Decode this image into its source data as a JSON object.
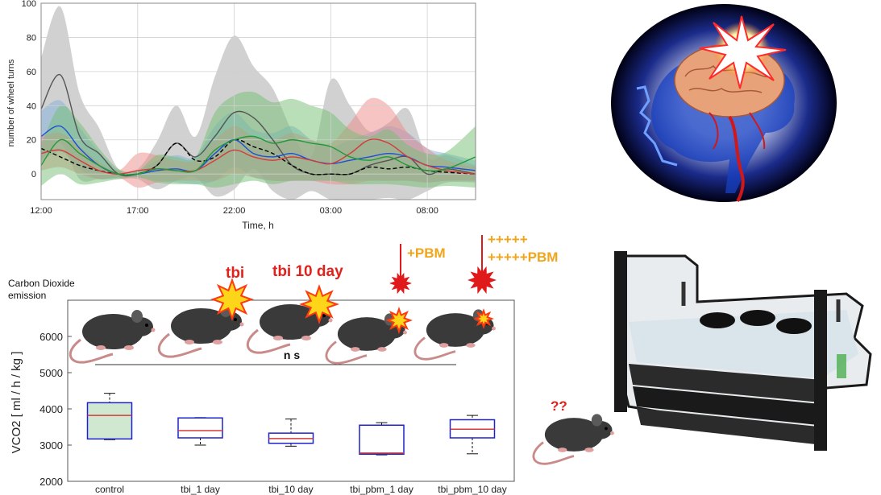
{
  "chart_data": [
    {
      "type": "line",
      "xlabel": "Time, h",
      "ylabel": "number of wheel turns",
      "x_ticks": [
        {
          "hour": 0,
          "label": "12:00"
        },
        {
          "hour": 5,
          "label": "17:00"
        },
        {
          "hour": 10,
          "label": "22:00"
        },
        {
          "hour": 15,
          "label": "03:00"
        },
        {
          "hour": 20,
          "label": "08:00"
        }
      ],
      "xlim": [
        0,
        22.5
      ],
      "ylim": [
        -15,
        100
      ],
      "y_ticks": [
        0,
        20,
        40,
        60,
        80,
        100
      ],
      "grid": true,
      "series": [
        {
          "color": "#555555",
          "dash": false,
          "band": "#bdbdbd",
          "x": [
            0,
            1,
            2,
            3,
            4,
            5,
            6,
            7,
            8,
            9,
            10,
            11,
            12,
            13,
            14,
            15,
            16,
            17,
            18,
            19,
            20,
            21,
            22.5
          ],
          "mean": [
            38,
            58,
            22,
            12,
            0,
            0,
            5,
            18,
            10,
            22,
            36,
            33,
            20,
            5,
            0,
            0,
            0,
            5,
            8,
            10,
            0,
            3,
            0
          ],
          "sd": [
            30,
            40,
            25,
            15,
            3,
            3,
            14,
            22,
            12,
            35,
            45,
            30,
            30,
            20,
            10,
            55,
            40,
            20,
            22,
            28,
            10,
            8,
            5
          ]
        },
        {
          "color": "#000000",
          "dash": true,
          "band": null,
          "x": [
            0,
            1,
            2,
            3,
            4,
            5,
            6,
            7,
            8,
            9,
            10,
            11,
            12,
            13,
            14,
            15,
            16,
            17,
            18,
            19,
            20,
            21,
            22.5
          ],
          "mean": [
            15,
            10,
            5,
            2,
            0,
            0,
            5,
            18,
            8,
            10,
            20,
            16,
            12,
            5,
            0,
            0,
            0,
            4,
            3,
            4,
            2,
            1,
            0
          ],
          "sd": [
            0,
            0,
            0,
            0,
            0,
            0,
            0,
            0,
            0,
            0,
            0,
            0,
            0,
            0,
            0,
            0,
            0,
            0,
            0,
            0,
            0,
            0,
            0
          ]
        },
        {
          "color": "#1f4fd6",
          "dash": false,
          "band": "#7fb2de",
          "x": [
            0,
            1,
            2,
            3,
            4,
            5,
            6,
            7,
            8,
            9,
            10,
            11,
            12,
            13,
            14,
            15,
            16,
            17,
            18,
            19,
            20,
            21,
            22.5
          ],
          "mean": [
            22,
            28,
            15,
            5,
            0,
            0,
            2,
            3,
            2,
            12,
            20,
            12,
            10,
            12,
            8,
            6,
            8,
            10,
            12,
            10,
            5,
            4,
            2
          ],
          "sd": [
            15,
            15,
            12,
            8,
            2,
            2,
            6,
            8,
            8,
            16,
            16,
            14,
            14,
            16,
            12,
            10,
            12,
            14,
            16,
            14,
            10,
            8,
            6
          ]
        },
        {
          "color": "#d63a3a",
          "dash": false,
          "band": "#f08a8a",
          "x": [
            0,
            1,
            2,
            3,
            4,
            5,
            6,
            7,
            8,
            9,
            10,
            11,
            12,
            13,
            14,
            15,
            16,
            17,
            18,
            19,
            20,
            21,
            22.5
          ],
          "mean": [
            12,
            14,
            8,
            2,
            0,
            2,
            3,
            2,
            2,
            8,
            14,
            10,
            8,
            10,
            8,
            6,
            12,
            20,
            18,
            10,
            5,
            2,
            0
          ],
          "sd": [
            10,
            10,
            8,
            5,
            2,
            10,
            8,
            6,
            6,
            12,
            14,
            12,
            12,
            14,
            12,
            12,
            18,
            24,
            22,
            14,
            10,
            6,
            4
          ]
        },
        {
          "color": "#1f9a3a",
          "dash": false,
          "band": "#72bf72",
          "x": [
            0,
            1,
            2,
            3,
            4,
            5,
            6,
            7,
            8,
            9,
            10,
            11,
            12,
            13,
            14,
            15,
            16,
            17,
            18,
            19,
            20,
            21,
            22.5
          ],
          "mean": [
            5,
            20,
            12,
            5,
            0,
            0,
            3,
            2,
            2,
            14,
            20,
            22,
            18,
            20,
            18,
            16,
            10,
            8,
            10,
            5,
            2,
            3,
            10
          ],
          "sd": [
            12,
            20,
            18,
            10,
            3,
            2,
            8,
            8,
            8,
            22,
            26,
            26,
            24,
            24,
            22,
            20,
            16,
            14,
            16,
            12,
            10,
            10,
            18
          ]
        }
      ]
    },
    {
      "type": "box",
      "title": "Carbon Dioxide\nemission",
      "ylabel": "VCO2  [ ml / h / kg ]",
      "ylim": [
        2000,
        7000
      ],
      "y_ticks": [
        2000,
        3000,
        4000,
        5000,
        6000
      ],
      "categories": [
        "control",
        "tbi_1 day",
        "tbi_10 day",
        "tbi_pbm_1 day",
        "tbi_pbm_10 day"
      ],
      "boxes": [
        {
          "min": 3150,
          "q1": 3170,
          "median": 3820,
          "q3": 4170,
          "max": 4430,
          "fill": "#cfe8cf"
        },
        {
          "min": 3000,
          "q1": 3200,
          "median": 3400,
          "q3": 3750,
          "max": 3760,
          "fill": "none"
        },
        {
          "min": 2970,
          "q1": 3050,
          "median": 3180,
          "q3": 3330,
          "max": 3720,
          "fill": "none"
        },
        {
          "min": 2730,
          "q1": 2750,
          "median": 2780,
          "q3": 3550,
          "max": 3620,
          "fill": "none"
        },
        {
          "min": 2760,
          "q1": 3200,
          "median": 3440,
          "q3": 3700,
          "max": 3820,
          "fill": "none"
        }
      ],
      "significance": "n s",
      "box_color": "#1e22c8",
      "median_color": "#d23c3c"
    }
  ],
  "annotations": {
    "tbi": "tbi",
    "tbi10": "tbi 10 day",
    "pbm": "+PBM",
    "pbm_plus1": "+++++",
    "pbm_plus2": "+++++PBM",
    "question": "??"
  },
  "colors": {
    "red_text": "#e0211c",
    "pbm_text": "#f0a51a",
    "laser": "#e01a1a"
  }
}
